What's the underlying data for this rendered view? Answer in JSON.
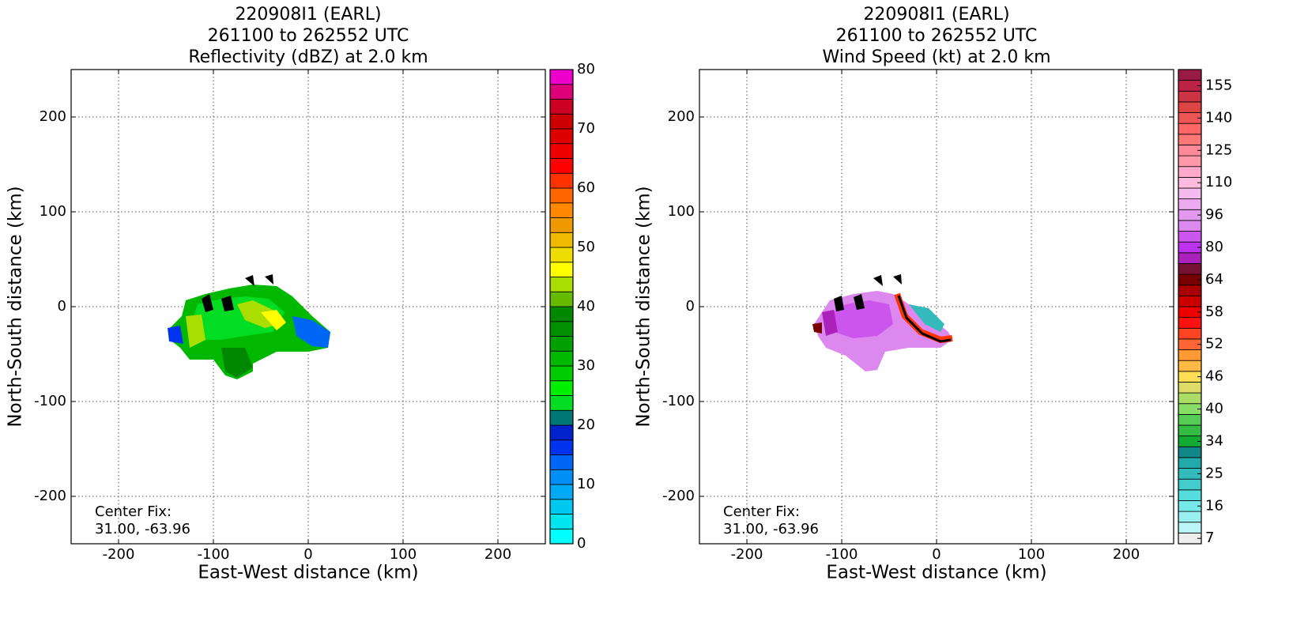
{
  "chart_data": [
    {
      "type": "heatmap",
      "title": [
        "220908I1 (EARL)",
        "261100 to 262552 UTC",
        "Reflectivity (dBZ) at 2.0 km"
      ],
      "xlabel": "East-West distance (km)",
      "ylabel": "North-South distance (km)",
      "xlim": [
        -250,
        250
      ],
      "ylim": [
        -250,
        250
      ],
      "xticks": [
        -200,
        -100,
        0,
        100,
        200
      ],
      "yticks": [
        -200,
        -100,
        0,
        100,
        200
      ],
      "grid": true,
      "annotation": [
        "Center Fix:",
        "31.00, -63.96"
      ],
      "colorbar": {
        "levels": [
          0,
          2.5,
          5,
          7.5,
          10,
          12.5,
          15,
          17.5,
          20,
          22.5,
          25,
          27.5,
          30,
          32.5,
          35,
          37.5,
          40,
          42.5,
          45,
          47.5,
          50,
          52.5,
          55,
          57.5,
          60,
          62.5,
          65,
          67.5,
          70,
          72.5,
          75,
          77.5,
          80
        ],
        "colors": [
          "#00ffff",
          "#00e6f0",
          "#00c8f0",
          "#00aaf5",
          "#0090f5",
          "#0066f5",
          "#0033ee",
          "#0022cc",
          "#007777",
          "#00dd22",
          "#00ee00",
          "#00cc00",
          "#00b800",
          "#00a000",
          "#009000",
          "#008800",
          "#66bb00",
          "#aadd00",
          "#ffff00",
          "#eedd00",
          "#eebb00",
          "#ee9900",
          "#ff8800",
          "#ff6600",
          "#ff3300",
          "#ff0000",
          "#ee0000",
          "#dd0000",
          "#cc0000",
          "#cc0022",
          "#dd0077",
          "#ee00cc"
        ],
        "ticks": [
          0,
          10,
          20,
          30,
          40,
          50,
          60,
          70,
          80
        ],
        "tick_align": "edge"
      }
    },
    {
      "type": "heatmap",
      "title": [
        "220908I1 (EARL)",
        "261100 to 262552 UTC",
        "Wind Speed (kt) at 2.0 km"
      ],
      "xlabel": "East-West distance (km)",
      "ylabel": "North-South distance (km)",
      "xlim": [
        -250,
        250
      ],
      "ylim": [
        -250,
        250
      ],
      "xticks": [
        -200,
        -100,
        0,
        100,
        200
      ],
      "yticks": [
        -200,
        -100,
        0,
        100,
        200
      ],
      "grid": true,
      "annotation": [
        "Center Fix:",
        "31.00, -63.96"
      ],
      "colorbar": {
        "levels": [
          7,
          10,
          13,
          16,
          19,
          22,
          25,
          28,
          31,
          34,
          36,
          38,
          40,
          42,
          44,
          46,
          48,
          50,
          52,
          54,
          56,
          58,
          60,
          62,
          64,
          69,
          74,
          80,
          85,
          90,
          96,
          100,
          105,
          110,
          115,
          120,
          125,
          130,
          135,
          140,
          145,
          150,
          155,
          160,
          165
        ],
        "colors": [
          "#eeeeee",
          "#bbf5f5",
          "#99f0f0",
          "#77e8e8",
          "#55dddd",
          "#44cccc",
          "#33bbbb",
          "#22aaaa",
          "#118888",
          "#11aa33",
          "#33bb44",
          "#55cc55",
          "#88dd66",
          "#aadd66",
          "#dddd66",
          "#ffdd55",
          "#ffbb44",
          "#ff9933",
          "#ff6633",
          "#ff4422",
          "#ff1111",
          "#ee0000",
          "#cc0000",
          "#aa0000",
          "#770000",
          "#771133",
          "#aa22bb",
          "#bb33ee",
          "#cc55ee",
          "#dd88ee",
          "#e099ee",
          "#eeaaee",
          "#f5bbee",
          "#ffbbdd",
          "#ffaacc",
          "#ff99aa",
          "#ff8899",
          "#ff7777",
          "#ff6666",
          "#ee5555",
          "#dd4444",
          "#cc3344",
          "#bb2244",
          "#991a44"
        ],
        "ticks": [
          7,
          16,
          25,
          34,
          40,
          46,
          52,
          58,
          64,
          80,
          96,
          110,
          125,
          140,
          155
        ],
        "tick_align": "center"
      }
    }
  ]
}
